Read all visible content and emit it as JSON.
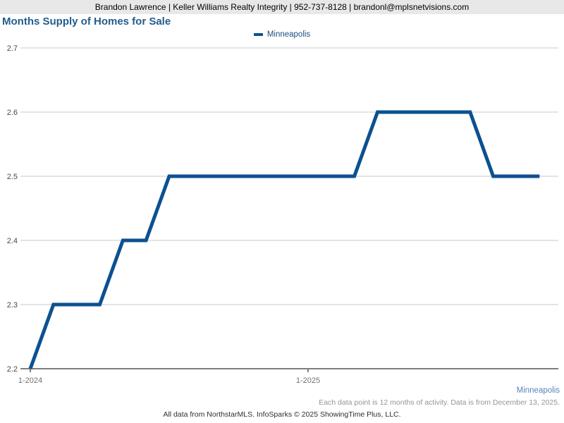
{
  "header": {
    "contact_text": "Brandon Lawrence | Keller Williams Realty Integrity | 952-737-8128 | brandonl@mplsnetvisions.com"
  },
  "title": "Months Supply of Homes for Sale",
  "legend": {
    "label": "Minneapolis",
    "color": "#0c5190"
  },
  "footer": {
    "series_label": "Minneapolis",
    "note": "Each data point is 12 months of activity. Data is from December 13, 2025.",
    "attribution": "All data from NorthstarMLS. InfoSparks © 2025 ShowingTime Plus, LLC."
  },
  "colors": {
    "line": "#0c5190",
    "title": "#235c8c",
    "grid": "#c9c9c9",
    "axis": "#7f7f7f",
    "header_bg": "#e8e8e8",
    "footer_series": "#5585b8",
    "footer_note": "#949494"
  },
  "chart_data": {
    "type": "line",
    "title": "Months Supply of Homes for Sale",
    "xlabel": "",
    "ylabel": "",
    "ylim": [
      2.2,
      2.7
    ],
    "y_ticks": [
      2.2,
      2.3,
      2.4,
      2.5,
      2.6,
      2.7
    ],
    "x": [
      "1-2024",
      "2-2024",
      "3-2024",
      "4-2024",
      "5-2024",
      "6-2024",
      "7-2024",
      "8-2024",
      "9-2024",
      "10-2024",
      "11-2024",
      "12-2024",
      "1-2025",
      "2-2025",
      "3-2025",
      "4-2025",
      "5-2025",
      "6-2025",
      "7-2025",
      "8-2025",
      "9-2025",
      "10-2025",
      "11-2025"
    ],
    "x_ticks": [
      {
        "label": "1-2024",
        "index": 0
      },
      {
        "label": "1-2025",
        "index": 12
      }
    ],
    "series": [
      {
        "name": "Minneapolis",
        "color": "#0c5190",
        "values": [
          2.2,
          2.3,
          2.3,
          2.3,
          2.4,
          2.4,
          2.5,
          2.5,
          2.5,
          2.5,
          2.5,
          2.5,
          2.5,
          2.5,
          2.5,
          2.6,
          2.6,
          2.6,
          2.6,
          2.6,
          2.5,
          2.5,
          2.5
        ]
      }
    ],
    "grid": "horizontal",
    "legend_position": "top-center"
  }
}
